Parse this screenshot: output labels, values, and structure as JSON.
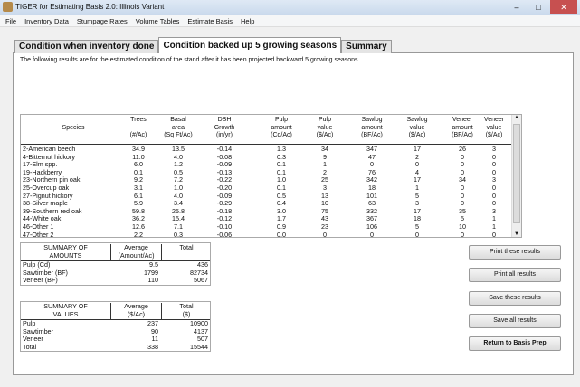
{
  "window": {
    "title": "TIGER for Estimating Basis 2.0: Illinois Variant",
    "minimize": "–",
    "maximize": "□",
    "close": "✕"
  },
  "menu": [
    "File",
    "Inventory Data",
    "Stumpage Rates",
    "Volume Tables",
    "Estimate Basis",
    "Help"
  ],
  "tabs": [
    {
      "label": "Condition when inventory done",
      "active": false
    },
    {
      "label": "Condition backed up 5 growing seasons",
      "active": true
    },
    {
      "label": "Summary",
      "active": false
    }
  ],
  "intro": "The following results are for the estimated condition of the stand after it has been projected backward 5 growing seasons.",
  "table": {
    "headers": [
      [
        "Species"
      ],
      [
        "Trees",
        "",
        "(#/Ac)"
      ],
      [
        "Basal",
        "area",
        "(Sq Ft/Ac)"
      ],
      [
        "DBH",
        "Growth",
        "(in/yr)"
      ],
      [
        "Pulp",
        "amount",
        "(Cd/Ac)"
      ],
      [
        "Pulp",
        "value",
        "($/Ac)"
      ],
      [
        "Sawlog",
        "amount",
        "(BF/Ac)"
      ],
      [
        "Sawlog",
        "value",
        "($/Ac)"
      ],
      [
        "Veneer",
        "amount",
        "(BF/Ac)"
      ],
      [
        "Veneer",
        "value",
        "($/Ac)"
      ]
    ],
    "rows": [
      [
        "2-American beech",
        "34.9",
        "13.5",
        "-0.14",
        "1.3",
        "34",
        "347",
        "17",
        "26",
        "3"
      ],
      [
        "4-Bitternut hickory",
        "11.0",
        "4.0",
        "-0.08",
        "0.3",
        "9",
        "47",
        "2",
        "0",
        "0"
      ],
      [
        "17-Elm spp.",
        "6.0",
        "1.2",
        "-0.09",
        "0.1",
        "1",
        "0",
        "0",
        "0",
        "0"
      ],
      [
        "19-Hackberry",
        "0.1",
        "0.5",
        "-0.13",
        "0.1",
        "2",
        "76",
        "4",
        "0",
        "0"
      ],
      [
        "23-Northern pin oak",
        "9.2",
        "7.2",
        "-0.22",
        "1.0",
        "25",
        "342",
        "17",
        "34",
        "3"
      ],
      [
        "25-Overcup oak",
        "3.1",
        "1.0",
        "-0.20",
        "0.1",
        "3",
        "18",
        "1",
        "0",
        "0"
      ],
      [
        "27-Pignut hickory",
        "6.1",
        "4.0",
        "-0.09",
        "0.5",
        "13",
        "101",
        "5",
        "0",
        "0"
      ],
      [
        "38-Silver maple",
        "5.9",
        "3.4",
        "-0.29",
        "0.4",
        "10",
        "63",
        "3",
        "0",
        "0"
      ],
      [
        "39-Southern red oak",
        "59.8",
        "25.8",
        "-0.18",
        "3.0",
        "75",
        "332",
        "17",
        "35",
        "3"
      ],
      [
        "44-White oak",
        "36.2",
        "15.4",
        "-0.12",
        "1.7",
        "43",
        "367",
        "18",
        "5",
        "1"
      ],
      [
        "46-Other 1",
        "12.6",
        "7.1",
        "-0.10",
        "0.9",
        "23",
        "106",
        "5",
        "10",
        "1"
      ],
      [
        "47-Other 2",
        "2.2",
        "0.3",
        "-0.06",
        "0.0",
        "0",
        "0",
        "0",
        "0",
        "0"
      ],
      [
        "48-Other 3",
        "1.2",
        "0.3",
        "-0.09",
        "0.0",
        "0",
        "0",
        "0",
        "0",
        "0"
      ]
    ]
  },
  "summary_amounts": {
    "headers": [
      [
        "SUMMARY OF",
        "AMOUNTS"
      ],
      [
        "Average",
        "(Amount/Ac)"
      ],
      [
        "Total",
        ""
      ]
    ],
    "rows": [
      [
        "Pulp (Cd)",
        "9.5",
        "436"
      ],
      [
        "Sawtimber (BF)",
        "1799",
        "82734"
      ],
      [
        "Veneer (BF)",
        "110",
        "5067"
      ]
    ]
  },
  "summary_values": {
    "headers": [
      [
        "SUMMARY OF",
        "VALUES"
      ],
      [
        "Average",
        "($/Ac)"
      ],
      [
        "Total",
        "($)"
      ]
    ],
    "rows": [
      [
        "Pulp",
        "237",
        "10900"
      ],
      [
        "Sawtimber",
        "90",
        "4137"
      ],
      [
        "Veneer",
        "11",
        "507"
      ],
      [
        "Total",
        "338",
        "15544"
      ]
    ]
  },
  "buttons": [
    "Print these results",
    "Print all results",
    "Save these results",
    "Save all results",
    "Return to Basis Prep"
  ]
}
